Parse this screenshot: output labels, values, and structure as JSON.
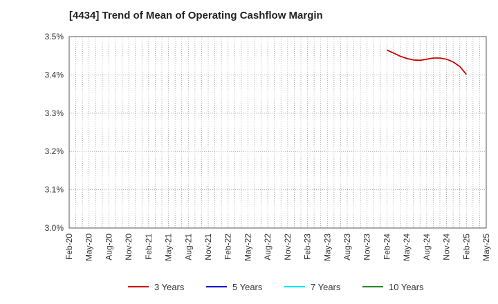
{
  "chart_data": {
    "type": "line",
    "title": "[4434]  Trend of Mean of Operating Cashflow Margin",
    "xlabel": "",
    "ylabel": "",
    "y_ticks": [
      "3.0%",
      "3.1%",
      "3.2%",
      "3.3%",
      "3.4%",
      "3.5%"
    ],
    "ylim": [
      3.0,
      3.5
    ],
    "x_ticks": [
      "Feb-20",
      "May-20",
      "Aug-20",
      "Nov-20",
      "Feb-21",
      "May-21",
      "Aug-21",
      "Nov-21",
      "Feb-22",
      "May-22",
      "Aug-22",
      "Nov-22",
      "Feb-23",
      "May-23",
      "Aug-23",
      "Nov-23",
      "Feb-24",
      "May-24",
      "Aug-24",
      "Nov-24",
      "Feb-25",
      "May-25"
    ],
    "grid": true,
    "legend_position": "bottom",
    "series": [
      {
        "name": "3 Years",
        "color": "#cc0000",
        "points": [
          {
            "x": "Feb-24",
            "y": 3.465
          },
          {
            "x": "Mar-24",
            "y": 3.457
          },
          {
            "x": "Apr-24",
            "y": 3.449
          },
          {
            "x": "May-24",
            "y": 3.443
          },
          {
            "x": "Jun-24",
            "y": 3.439
          },
          {
            "x": "Jul-24",
            "y": 3.438
          },
          {
            "x": "Aug-24",
            "y": 3.441
          },
          {
            "x": "Sep-24",
            "y": 3.444
          },
          {
            "x": "Oct-24",
            "y": 3.444
          },
          {
            "x": "Nov-24",
            "y": 3.441
          },
          {
            "x": "Dec-24",
            "y": 3.434
          },
          {
            "x": "Jan-25",
            "y": 3.422
          },
          {
            "x": "Feb-25",
            "y": 3.401
          }
        ]
      },
      {
        "name": "5 Years",
        "color": "#0000cc",
        "points": []
      },
      {
        "name": "7 Years",
        "color": "#00e5ee",
        "points": []
      },
      {
        "name": "10 Years",
        "color": "#228b22",
        "points": []
      }
    ]
  }
}
